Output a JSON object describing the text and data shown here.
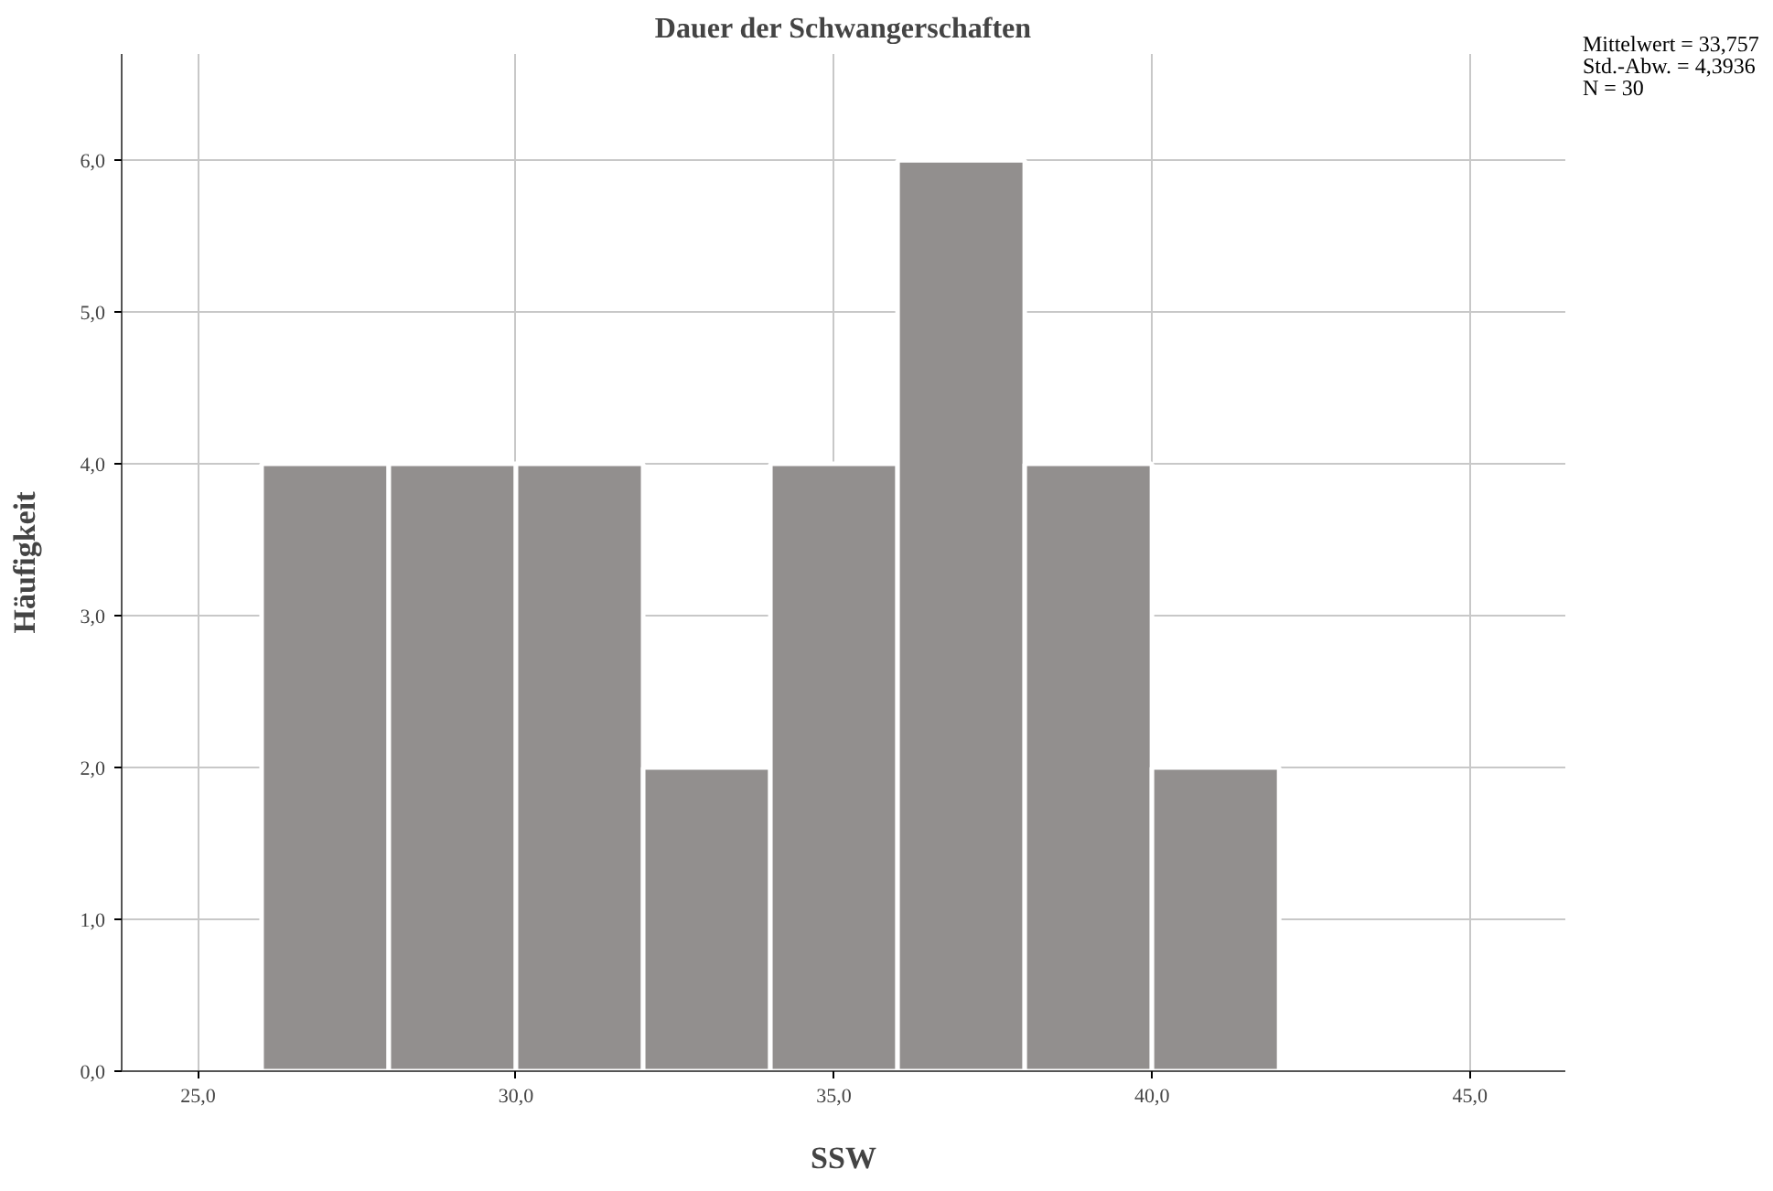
{
  "chart_data": {
    "type": "histogram",
    "title": "Dauer der Schwangerschaften",
    "xlabel": "SSW",
    "ylabel": "Häufigkeit",
    "bins": [
      26,
      28,
      30,
      32,
      34,
      36,
      38,
      40,
      42
    ],
    "values": [
      4,
      4,
      4,
      2,
      4,
      6,
      4,
      2
    ],
    "color": "#928f8e",
    "xlim": [
      23.8,
      46.5
    ],
    "ylim": [
      0,
      6.7
    ],
    "xticks": [
      {
        "value": 25,
        "label": "25,0"
      },
      {
        "value": 30,
        "label": "30,0"
      },
      {
        "value": 35,
        "label": "35,0"
      },
      {
        "value": 40,
        "label": "40,0"
      },
      {
        "value": 45,
        "label": "45,0"
      }
    ],
    "yticks": [
      {
        "value": 0,
        "label": "0,0"
      },
      {
        "value": 1,
        "label": "1,0"
      },
      {
        "value": 2,
        "label": "2,0"
      },
      {
        "value": 3,
        "label": "3,0"
      },
      {
        "value": 4,
        "label": "4,0"
      },
      {
        "value": 5,
        "label": "5,0"
      },
      {
        "value": 6,
        "label": "6,0"
      }
    ],
    "grid": true,
    "annotations": [
      "Mittelwert = 33,757",
      "Std.-Abw. = 4,3936",
      "N = 30"
    ]
  }
}
